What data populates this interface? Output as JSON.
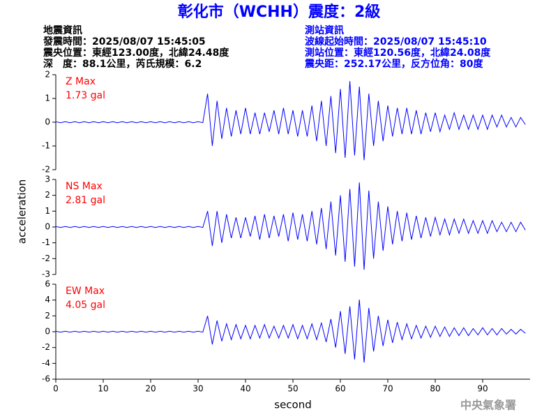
{
  "header": {
    "title": "彰化市（WCHH）震度：2級",
    "quake_info": [
      "地震資訊",
      "發震時間：2025/08/07 15:45:05",
      "震央位置：東經123.00度，北緯24.48度",
      "深　度：88.1公里，芮氏規模：6.2"
    ],
    "station_info": [
      "測站資訊",
      "波線起始時間：2025/08/07 15:45:10",
      "測站位置：東經120.56度，北緯24.08度",
      "震央距：252.17公里，反方位角：80度"
    ],
    "ylabel": "acceleration",
    "footer": "中央氣象署"
  },
  "chart_data": [
    {
      "type": "line",
      "annotation": "Z Max",
      "annotation_value": "1.73 gal",
      "xlim": [
        0,
        100
      ],
      "ylim": [
        -2,
        2
      ],
      "yticks": [
        -2,
        -1,
        0,
        1,
        2
      ],
      "x": [
        0,
        1,
        2,
        3,
        4,
        5,
        6,
        7,
        8,
        9,
        10,
        11,
        12,
        13,
        14,
        15,
        16,
        17,
        18,
        19,
        20,
        21,
        22,
        23,
        24,
        25,
        26,
        27,
        28,
        29,
        30,
        31,
        32,
        33,
        34,
        35,
        36,
        37,
        38,
        39,
        40,
        41,
        42,
        43,
        44,
        45,
        46,
        47,
        48,
        49,
        50,
        51,
        52,
        53,
        54,
        55,
        56,
        57,
        58,
        59,
        60,
        61,
        62,
        63,
        64,
        65,
        66,
        67,
        68,
        69,
        70,
        71,
        72,
        73,
        74,
        75,
        76,
        77,
        78,
        79,
        80,
        81,
        82,
        83,
        84,
        85,
        86,
        87,
        88,
        89,
        90,
        91,
        92,
        93,
        94,
        95,
        96,
        97,
        98,
        99
      ],
      "series": [
        {
          "color": "#0000ff",
          "values": [
            0.02,
            -0.02,
            0.02,
            -0.02,
            0.02,
            -0.02,
            0.02,
            -0.02,
            0.02,
            -0.02,
            0.02,
            -0.02,
            0.02,
            -0.02,
            0.02,
            -0.02,
            0.02,
            -0.02,
            0.02,
            -0.02,
            0.02,
            -0.02,
            0.02,
            -0.02,
            0.02,
            -0.02,
            0.02,
            -0.02,
            0.02,
            -0.02,
            0.02,
            -0.02,
            1.2,
            -1.0,
            0.9,
            -0.7,
            0.6,
            -0.6,
            0.5,
            -0.5,
            0.6,
            -0.5,
            0.4,
            -0.5,
            0.4,
            -0.4,
            0.5,
            -0.5,
            0.6,
            -0.5,
            0.5,
            -0.6,
            0.5,
            -0.6,
            0.7,
            -0.8,
            0.9,
            -1.0,
            1.1,
            -1.3,
            1.4,
            -1.5,
            1.73,
            -1.4,
            1.5,
            -1.6,
            1.2,
            -1.0,
            0.9,
            -0.8,
            0.7,
            -0.6,
            0.6,
            -0.5,
            0.6,
            -0.5,
            0.5,
            -0.5,
            0.4,
            -0.4,
            0.4,
            -0.4,
            0.3,
            -0.3,
            0.4,
            -0.3,
            0.3,
            -0.3,
            0.3,
            -0.3,
            0.3,
            -0.3,
            0.3,
            -0.2,
            0.3,
            -0.2,
            0.2,
            -0.2,
            0.2,
            -0.1
          ]
        }
      ]
    },
    {
      "type": "line",
      "annotation": "NS Max",
      "annotation_value": "2.81 gal",
      "xlim": [
        0,
        100
      ],
      "ylim": [
        -3,
        3
      ],
      "yticks": [
        -3,
        -2,
        -1,
        0,
        1,
        2,
        3
      ],
      "x": [
        0,
        1,
        2,
        3,
        4,
        5,
        6,
        7,
        8,
        9,
        10,
        11,
        12,
        13,
        14,
        15,
        16,
        17,
        18,
        19,
        20,
        21,
        22,
        23,
        24,
        25,
        26,
        27,
        28,
        29,
        30,
        31,
        32,
        33,
        34,
        35,
        36,
        37,
        38,
        39,
        40,
        41,
        42,
        43,
        44,
        45,
        46,
        47,
        48,
        49,
        50,
        51,
        52,
        53,
        54,
        55,
        56,
        57,
        58,
        59,
        60,
        61,
        62,
        63,
        64,
        65,
        66,
        67,
        68,
        69,
        70,
        71,
        72,
        73,
        74,
        75,
        76,
        77,
        78,
        79,
        80,
        81,
        82,
        83,
        84,
        85,
        86,
        87,
        88,
        89,
        90,
        91,
        92,
        93,
        94,
        95,
        96,
        97,
        98,
        99
      ],
      "series": [
        {
          "color": "#0000ff",
          "values": [
            0.03,
            -0.03,
            0.03,
            -0.03,
            0.03,
            -0.03,
            0.03,
            -0.03,
            0.03,
            -0.03,
            0.03,
            -0.03,
            0.03,
            -0.03,
            0.03,
            -0.03,
            0.03,
            -0.03,
            0.03,
            -0.03,
            0.03,
            -0.03,
            0.03,
            -0.03,
            0.03,
            -0.03,
            0.03,
            -0.03,
            0.03,
            -0.03,
            0.03,
            -0.03,
            1.0,
            -1.2,
            1.0,
            -1.0,
            0.8,
            -0.7,
            0.6,
            -0.7,
            0.6,
            -0.6,
            0.7,
            -0.8,
            0.8,
            -0.7,
            0.7,
            -0.6,
            0.8,
            -0.9,
            0.9,
            -0.8,
            0.8,
            -0.9,
            1.0,
            -1.1,
            1.2,
            -1.4,
            1.6,
            -1.8,
            2.0,
            -2.2,
            2.4,
            -2.5,
            2.81,
            -2.7,
            2.3,
            -2.0,
            1.6,
            -1.5,
            1.3,
            -1.1,
            1.0,
            -0.9,
            0.9,
            -0.8,
            0.7,
            -0.7,
            0.6,
            -0.6,
            0.6,
            -0.5,
            0.5,
            -0.5,
            0.5,
            -0.4,
            0.5,
            -0.4,
            0.4,
            -0.4,
            0.4,
            -0.4,
            0.4,
            -0.3,
            0.3,
            -0.3,
            0.3,
            -0.3,
            0.3,
            -0.2
          ]
        }
      ]
    },
    {
      "type": "line",
      "annotation": "EW Max",
      "annotation_value": "4.05 gal",
      "xlabel": "second",
      "xlim": [
        0,
        100
      ],
      "ylim": [
        -6,
        6
      ],
      "yticks": [
        -6,
        -4,
        -2,
        0,
        2,
        4,
        6
      ],
      "xticks": [
        0,
        10,
        20,
        30,
        40,
        50,
        60,
        70,
        80,
        90
      ],
      "x": [
        0,
        1,
        2,
        3,
        4,
        5,
        6,
        7,
        8,
        9,
        10,
        11,
        12,
        13,
        14,
        15,
        16,
        17,
        18,
        19,
        20,
        21,
        22,
        23,
        24,
        25,
        26,
        27,
        28,
        29,
        30,
        31,
        32,
        33,
        34,
        35,
        36,
        37,
        38,
        39,
        40,
        41,
        42,
        43,
        44,
        45,
        46,
        47,
        48,
        49,
        50,
        51,
        52,
        53,
        54,
        55,
        56,
        57,
        58,
        59,
        60,
        61,
        62,
        63,
        64,
        65,
        66,
        67,
        68,
        69,
        70,
        71,
        72,
        73,
        74,
        75,
        76,
        77,
        78,
        79,
        80,
        81,
        82,
        83,
        84,
        85,
        86,
        87,
        88,
        89,
        90,
        91,
        92,
        93,
        94,
        95,
        96,
        97,
        98,
        99
      ],
      "series": [
        {
          "color": "#0000ff",
          "values": [
            0.05,
            -0.05,
            0.05,
            -0.05,
            0.05,
            -0.05,
            0.05,
            -0.05,
            0.05,
            -0.05,
            0.05,
            -0.05,
            0.05,
            -0.05,
            0.05,
            -0.05,
            0.05,
            -0.05,
            0.05,
            -0.05,
            0.05,
            -0.05,
            0.05,
            -0.05,
            0.05,
            -0.05,
            0.05,
            -0.05,
            0.05,
            -0.05,
            0.05,
            -0.05,
            2.0,
            -1.6,
            1.4,
            -1.2,
            1.0,
            -1.0,
            0.9,
            -0.9,
            0.8,
            -0.9,
            0.8,
            -0.8,
            0.9,
            -0.8,
            0.7,
            -0.8,
            0.8,
            -0.8,
            0.9,
            -0.9,
            0.8,
            -0.9,
            1.0,
            -1.0,
            1.1,
            -1.3,
            1.6,
            -2.0,
            2.6,
            -2.8,
            3.2,
            -3.5,
            4.05,
            -3.9,
            3.0,
            -2.5,
            2.0,
            -1.8,
            1.5,
            -1.4,
            1.2,
            -1.0,
            1.0,
            -0.9,
            0.8,
            -0.8,
            0.7,
            -0.7,
            0.7,
            -0.6,
            0.6,
            -0.6,
            0.5,
            -0.5,
            0.5,
            -0.5,
            0.4,
            -0.4,
            0.5,
            -0.4,
            0.4,
            -0.4,
            0.4,
            -0.3,
            0.3,
            -0.3,
            0.3,
            -0.2
          ]
        }
      ]
    }
  ]
}
